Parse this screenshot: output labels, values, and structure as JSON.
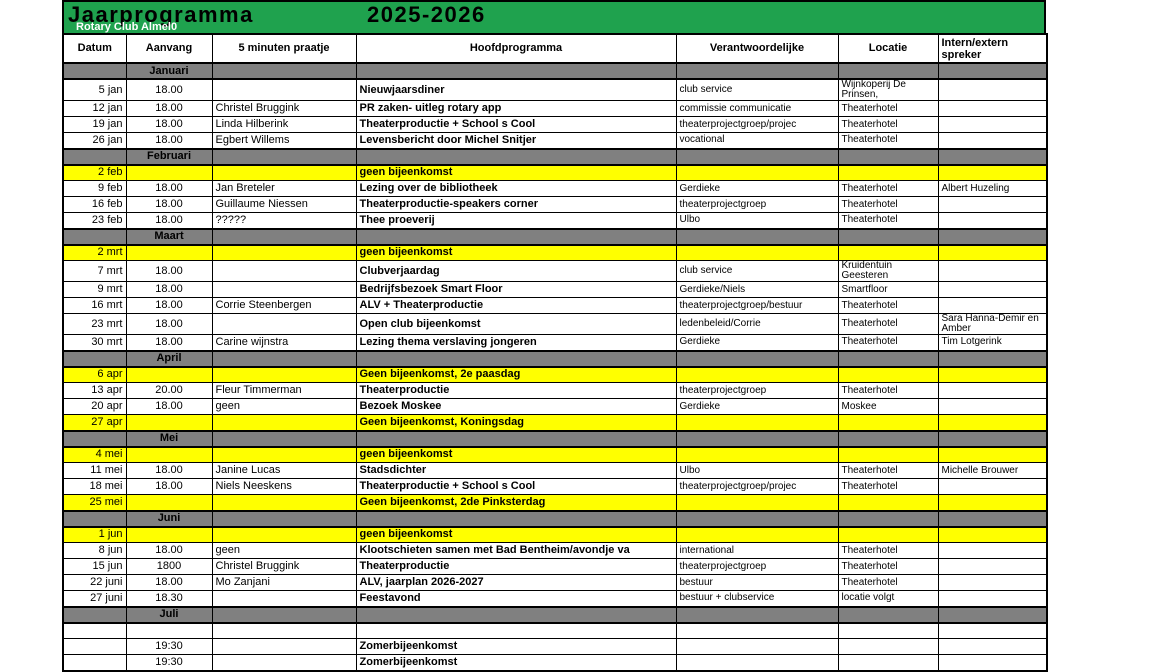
{
  "banner": {
    "title": "Jaarprogramma",
    "year": "2025-2026",
    "subtitle": "Rotary Club Almel0"
  },
  "colors": {
    "banner_green": "#1fa24e",
    "month_row_gray": "#808080",
    "no_meeting_yellow": "#ffff00"
  },
  "table": {
    "columns": [
      "Datum",
      "Aanvang",
      "5 minuten praatje",
      "Hoofdprogramma",
      "Verantwoordelijke",
      "Locatie",
      "Intern/extern spreker"
    ],
    "rows": [
      {
        "type": "month",
        "label": "Januari"
      },
      {
        "type": "event",
        "datum": "5 jan",
        "aanvang": "18.00",
        "praatje": "",
        "hoofd": "Nieuwjaarsdiner",
        "verantw": "club service",
        "locatie": "Wijnkoperij De Prinsen,",
        "spreker": ""
      },
      {
        "type": "event",
        "datum": "12 jan",
        "aanvang": "18.00",
        "praatje": "Christel Bruggink",
        "hoofd": "PR zaken- uitleg rotary app",
        "verantw": "commissie communicatie",
        "locatie": "Theaterhotel",
        "spreker": ""
      },
      {
        "type": "event",
        "datum": "19 jan",
        "aanvang": "18.00",
        "praatje": "Linda Hilberink",
        "hoofd": "Theaterproductie + School s Cool",
        "verantw": "theaterprojectgroep/projec",
        "locatie": "Theaterhotel",
        "spreker": ""
      },
      {
        "type": "event",
        "datum": "26 jan",
        "aanvang": "18.00",
        "praatje": "Egbert Willems",
        "hoofd": "Levensbericht door Michel Snitjer",
        "verantw": "vocational",
        "locatie": "Theaterhotel",
        "spreker": ""
      },
      {
        "type": "month",
        "label": "Februari"
      },
      {
        "type": "no_meeting",
        "datum": "2 feb",
        "aanvang": "",
        "praatje": "",
        "hoofd": "geen bijeenkomst",
        "verantw": "",
        "locatie": "",
        "spreker": ""
      },
      {
        "type": "event",
        "datum": "9 feb",
        "aanvang": "18.00",
        "praatje": "Jan Breteler",
        "hoofd": "Lezing over de bibliotheek",
        "verantw": "Gerdieke",
        "locatie": "Theaterhotel",
        "spreker": "Albert Huzeling"
      },
      {
        "type": "event",
        "datum": "16 feb",
        "aanvang": "18.00",
        "praatje": "Guillaume Niessen",
        "hoofd": "Theaterproductie-speakers corner",
        "verantw": "theaterprojectgroep",
        "locatie": "Theaterhotel",
        "spreker": ""
      },
      {
        "type": "event",
        "datum": "23 feb",
        "aanvang": "18.00",
        "praatje": "?????",
        "hoofd": "Thee proeverij",
        "verantw": "Ulbo",
        "locatie": "Theaterhotel",
        "spreker": ""
      },
      {
        "type": "month",
        "label": "Maart"
      },
      {
        "type": "no_meeting",
        "datum": "2 mrt",
        "aanvang": "",
        "praatje": "",
        "hoofd": "geen bijeenkomst",
        "verantw": "",
        "locatie": "",
        "spreker": ""
      },
      {
        "type": "event",
        "datum": "7 mrt",
        "aanvang": "18.00",
        "praatje": "",
        "hoofd": "Clubverjaardag",
        "verantw": "club service",
        "locatie": "Kruidentuin Geesteren",
        "spreker": ""
      },
      {
        "type": "event",
        "datum": "9 mrt",
        "aanvang": "18.00",
        "praatje": "",
        "hoofd": "Bedrijfsbezoek Smart Floor",
        "verantw": "Gerdieke/Niels",
        "locatie": "Smartfloor",
        "spreker": ""
      },
      {
        "type": "event",
        "datum": "16 mrt",
        "aanvang": "18.00",
        "praatje": "Corrie Steenbergen",
        "hoofd": "ALV + Theaterproductie",
        "verantw": "theaterprojectgroep/bestuur",
        "locatie": "Theaterhotel",
        "spreker": ""
      },
      {
        "type": "event",
        "datum": "23 mrt",
        "aanvang": "18.00",
        "praatje": "",
        "hoofd": "Open club bijeenkomst",
        "verantw": "ledenbeleid/Corrie",
        "locatie": "Theaterhotel",
        "spreker": "Sara Hanna-Demir en Amber"
      },
      {
        "type": "event",
        "datum": "30 mrt",
        "aanvang": "18.00",
        "praatje": "Carine wijnstra",
        "hoofd": "Lezing thema verslaving jongeren",
        "verantw": "Gerdieke",
        "locatie": "Theaterhotel",
        "spreker": "Tim Lotgerink"
      },
      {
        "type": "month",
        "label": "April"
      },
      {
        "type": "no_meeting",
        "datum": "6 apr",
        "aanvang": "",
        "praatje": "",
        "hoofd": "Geen bijeenkomst, 2e paasdag",
        "verantw": "",
        "locatie": "",
        "spreker": ""
      },
      {
        "type": "event",
        "datum": "13 apr",
        "aanvang": "20.00",
        "praatje": "Fleur Timmerman",
        "hoofd": "Theaterproductie",
        "verantw": "theaterprojectgroep",
        "locatie": "Theaterhotel",
        "spreker": ""
      },
      {
        "type": "event",
        "datum": "20 apr",
        "aanvang": "18.00",
        "praatje": "geen",
        "hoofd": "Bezoek Moskee",
        "verantw": "Gerdieke",
        "locatie": "Moskee",
        "spreker": ""
      },
      {
        "type": "no_meeting",
        "datum": "27 apr",
        "aanvang": "",
        "praatje": "",
        "hoofd": "Geen bijeenkomst, Koningsdag",
        "verantw": "",
        "locatie": "",
        "spreker": ""
      },
      {
        "type": "month",
        "label": "Mei"
      },
      {
        "type": "no_meeting",
        "datum": "4 mei",
        "aanvang": "",
        "praatje": "",
        "hoofd": "geen bijeenkomst",
        "verantw": "",
        "locatie": "",
        "spreker": ""
      },
      {
        "type": "event",
        "datum": "11 mei",
        "aanvang": "18.00",
        "praatje": "Janine Lucas",
        "hoofd": "Stadsdichter",
        "verantw": "Ulbo",
        "locatie": "Theaterhotel",
        "spreker": "Michelle Brouwer"
      },
      {
        "type": "event",
        "datum": "18 mei",
        "aanvang": "18.00",
        "praatje": "Niels Neeskens",
        "hoofd": "Theaterproductie + School s Cool",
        "verantw": "theaterprojectgroep/projec",
        "locatie": "Theaterhotel",
        "spreker": ""
      },
      {
        "type": "no_meeting",
        "datum": "25 mei",
        "aanvang": "",
        "praatje": "",
        "hoofd": "Geen bijeenkomst, 2de Pinksterdag",
        "verantw": "",
        "locatie": "",
        "spreker": ""
      },
      {
        "type": "month",
        "label": "Juni"
      },
      {
        "type": "no_meeting",
        "datum": "1 jun",
        "aanvang": "",
        "praatje": "",
        "hoofd": "geen bijeenkomst",
        "verantw": "",
        "locatie": "",
        "spreker": ""
      },
      {
        "type": "event",
        "datum": "8 jun",
        "aanvang": "18.00",
        "praatje": "geen",
        "hoofd": "Klootschieten samen met Bad Bentheim/avondje va",
        "verantw": "international",
        "locatie": "Theaterhotel",
        "spreker": ""
      },
      {
        "type": "event",
        "datum": "15 jun",
        "aanvang": "1800",
        "praatje": "Christel Bruggink",
        "hoofd": "Theaterproductie",
        "verantw": "theaterprojectgroep",
        "locatie": "Theaterhotel",
        "spreker": ""
      },
      {
        "type": "event",
        "datum": "22 juni",
        "aanvang": "18.00",
        "praatje": "Mo Zanjani",
        "hoofd": "ALV, jaarplan 2026-2027",
        "verantw": "bestuur",
        "locatie": "Theaterhotel",
        "spreker": ""
      },
      {
        "type": "event",
        "datum": "27 juni",
        "aanvang": "18.30",
        "praatje": "",
        "hoofd": "Feestavond",
        "verantw": "bestuur + clubservice",
        "locatie": "locatie volgt",
        "spreker": ""
      },
      {
        "type": "month",
        "label": "Juli"
      },
      {
        "type": "empty",
        "datum": "",
        "aanvang": "",
        "praatje": "",
        "hoofd": "",
        "verantw": "",
        "locatie": "",
        "spreker": ""
      },
      {
        "type": "event",
        "datum": "",
        "aanvang": "19:30",
        "praatje": "",
        "hoofd": "Zomerbijeenkomst",
        "verantw": "",
        "locatie": "",
        "spreker": ""
      },
      {
        "type": "event",
        "datum": "",
        "aanvang": "19:30",
        "praatje": "",
        "hoofd": "Zomerbijeenkomst",
        "verantw": "",
        "locatie": "",
        "spreker": ""
      }
    ]
  }
}
